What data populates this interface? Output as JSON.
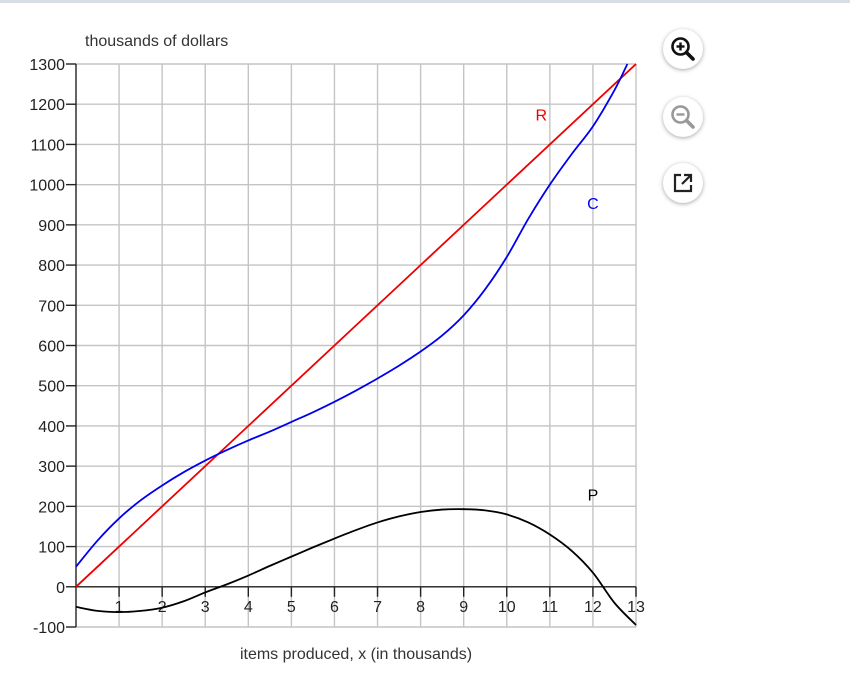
{
  "chart_data": {
    "type": "line",
    "ylabel": "thousands of dollars",
    "xlabel": "items produced, x (in thousands)",
    "xlim": [
      0,
      13
    ],
    "ylim": [
      -100,
      1300
    ],
    "x_ticks": [
      1,
      2,
      3,
      4,
      5,
      6,
      7,
      8,
      9,
      10,
      11,
      12,
      13
    ],
    "x_tick_labels": [
      "1",
      "2",
      "3",
      "4",
      "5",
      "6",
      "7",
      "8",
      "9",
      "10",
      "11",
      "12",
      "13"
    ],
    "y_ticks": [
      -100,
      0,
      100,
      200,
      300,
      400,
      500,
      600,
      700,
      800,
      900,
      1000,
      1100,
      1200,
      1300
    ],
    "y_tick_labels": [
      "-100",
      "0",
      "100",
      "200",
      "300",
      "400",
      "500",
      "600",
      "700",
      "800",
      "900",
      "1000",
      "1100",
      "1200",
      "1300"
    ],
    "grid": true,
    "series": [
      {
        "name": "R",
        "color": "#ee0000",
        "x": [
          0,
          13
        ],
        "values": [
          0,
          1300
        ],
        "label_at": [
          10.8,
          1160
        ]
      },
      {
        "name": "C",
        "color": "#0000ee",
        "x": [
          0,
          0.5,
          1,
          1.5,
          2,
          2.5,
          3,
          3.5,
          4,
          4.5,
          5,
          5.5,
          6,
          6.5,
          7,
          7.5,
          8,
          8.5,
          9,
          9.5,
          10,
          10.5,
          11,
          11.5,
          12,
          12.5,
          12.8
        ],
        "values": [
          50,
          115,
          170,
          215,
          252,
          285,
          314,
          340,
          364,
          386,
          410,
          434,
          460,
          488,
          518,
          550,
          585,
          625,
          675,
          740,
          820,
          915,
          1000,
          1075,
          1145,
          1235,
          1300
        ],
        "label_at": [
          12.0,
          940
        ]
      },
      {
        "name": "P",
        "color": "#000000",
        "x": [
          0,
          0.5,
          1,
          1.5,
          2,
          2.5,
          3,
          3.5,
          4,
          4.5,
          5,
          5.5,
          6,
          6.5,
          7,
          7.5,
          8,
          8.5,
          9,
          9.5,
          10,
          10.5,
          11,
          11.5,
          12,
          12.5,
          13
        ],
        "values": [
          -50,
          -60,
          -63,
          -60,
          -52,
          -36,
          -14,
          6,
          28,
          52,
          75,
          98,
          120,
          141,
          160,
          175,
          186,
          192,
          193,
          190,
          180,
          160,
          130,
          90,
          35,
          -40,
          -95
        ],
        "label_at": [
          12.0,
          215
        ]
      }
    ]
  },
  "tools": {
    "zoom_in_icon": "zoom-in-icon",
    "zoom_out_icon": "zoom-out-icon",
    "popout_icon": "external-link-icon"
  }
}
